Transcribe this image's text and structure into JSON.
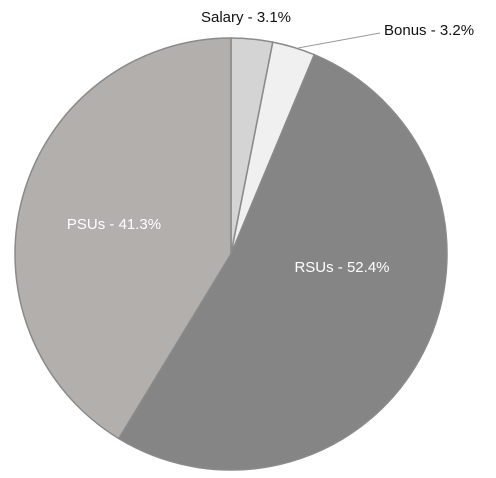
{
  "chart_data": {
    "type": "pie",
    "values": [
      3.1,
      3.2,
      52.4,
      41.3
    ],
    "value_labels": [
      "Salary - 3.1%",
      "Bonus - 3.2%",
      "RSUs - 52.4%",
      "PSUs - 41.3%"
    ],
    "colors": [
      "#d4d4d4",
      "#f0f0f0",
      "#858585",
      "#b3afad"
    ]
  }
}
